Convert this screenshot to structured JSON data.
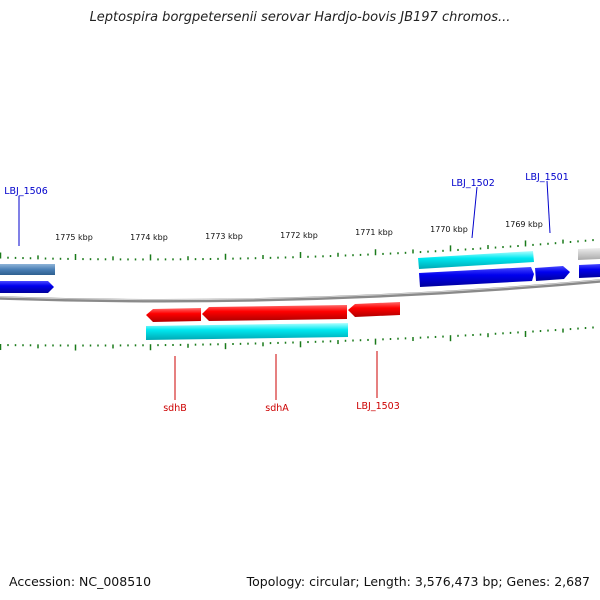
{
  "title": "Leptospira borgpetersenii serovar Hardjo-bovis JB197 chromos...",
  "footer": {
    "accession": "Accession: NC_008510",
    "summary": "Topology: circular; Length: 3,576,473 bp; Genes: 2,687"
  },
  "scale_labels": [
    "1775 kbp",
    "1774 kbp",
    "1773 kbp",
    "1772 kbp",
    "1771 kbp",
    "1770 kbp",
    "1769 kbp"
  ],
  "genes": {
    "forward": [
      {
        "label": "LBJ_1506",
        "color": "#0000cc"
      },
      {
        "label": "LBJ_1502",
        "color": "#0000cc"
      },
      {
        "label": "LBJ_1501",
        "color": "#0000cc"
      }
    ],
    "reverse": [
      {
        "label": "sdhB",
        "color": "#cc0000"
      },
      {
        "label": "sdhA",
        "color": "#cc0000"
      },
      {
        "label": "LBJ_1503",
        "color": "#cc0000"
      }
    ]
  },
  "colors": {
    "forward_gene": "#0000ee",
    "reverse_gene": "#ee0000",
    "cds_bar": "#00e5ee",
    "tick": "#1a7a1a",
    "backbone": "#8a8a8a",
    "other_gene": "#4a7fb5"
  }
}
